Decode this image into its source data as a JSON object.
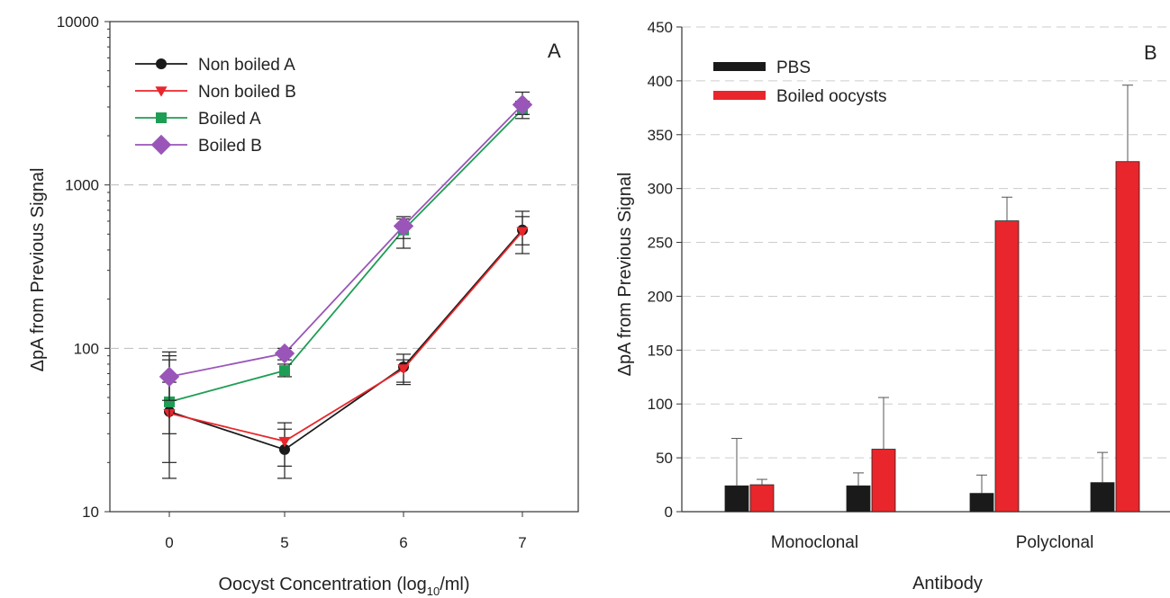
{
  "chart_data": [
    {
      "panel": "A",
      "type": "line",
      "xlabel_main": "Oocyst Concentration (log",
      "xlabel_sub": "10",
      "xlabel_tail": "/ml)",
      "ylabel": "ΔpA from Previous Signal",
      "yscale": "log",
      "ylim": [
        10,
        10000
      ],
      "yticks": [
        10,
        100,
        1000,
        10000
      ],
      "grid": "horizontal dashed at 100 and 1000",
      "categories": [
        "0",
        "5",
        "6",
        "7"
      ],
      "legend_position": "top-left",
      "series": [
        {
          "name": "Non boiled A",
          "color": "#1a1a1a",
          "marker": "circle",
          "values": [
            41,
            24,
            77,
            530
          ],
          "err_low": [
            16,
            16,
            60,
            380
          ],
          "err_high": [
            90,
            35,
            92,
            690
          ]
        },
        {
          "name": "Non boiled B",
          "color": "#e8262b",
          "marker": "triangle-down",
          "values": [
            40,
            27,
            75,
            520
          ],
          "err_low": [
            20,
            19,
            62,
            430
          ],
          "err_high": [
            85,
            32,
            85,
            640
          ]
        },
        {
          "name": "Boiled A",
          "color": "#1e9e55",
          "marker": "square",
          "values": [
            47,
            73,
            530,
            2900
          ],
          "err_low": [
            30,
            67,
            410,
            2550
          ],
          "err_high": [
            62,
            80,
            620,
            3250
          ]
        },
        {
          "name": "Boiled B",
          "color": "#9a55b8",
          "marker": "diamond",
          "values": [
            67,
            93,
            560,
            3100
          ],
          "err_low": [
            48,
            85,
            470,
            2700
          ],
          "err_high": [
            95,
            100,
            640,
            3700
          ]
        }
      ]
    },
    {
      "panel": "B",
      "type": "bar",
      "xlabel": "Antibody",
      "ylabel": "ΔpA from Previous Signal",
      "ylim": [
        0,
        450
      ],
      "yticks": [
        0,
        50,
        100,
        150,
        200,
        250,
        300,
        350,
        400,
        450
      ],
      "grid": "horizontal dashed",
      "category_labels": [
        "Monoclonal",
        "Polyclonal"
      ],
      "groups": 4,
      "legend_position": "top-left",
      "series": [
        {
          "name": "PBS",
          "color": "#1a1a1a",
          "values": [
            24,
            24,
            17,
            27
          ],
          "err_high": [
            68,
            36,
            34,
            55
          ]
        },
        {
          "name": "Boiled oocysts",
          "color": "#e8262b",
          "values": [
            25,
            58,
            270,
            325
          ],
          "err_high": [
            30,
            106,
            292,
            396
          ]
        }
      ]
    }
  ]
}
